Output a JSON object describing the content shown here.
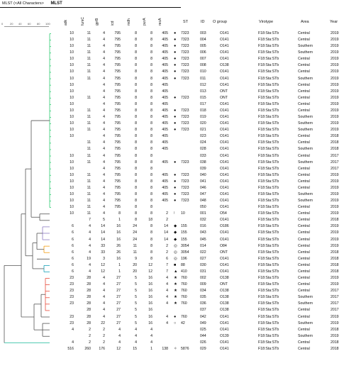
{
  "app": {
    "title_prefix": "MLST (<All Characters>",
    "tab_label": "MLST",
    "scale_labels": [
      "0",
      "20",
      "40",
      "60",
      "80",
      "100"
    ]
  },
  "columns": {
    "alleles": [
      "adk",
      "fumC",
      "gyrB",
      "icd",
      "mdh",
      "purA",
      "recA"
    ],
    "st": "ST",
    "id": "ID",
    "ogroup": "O group",
    "virotype": "Virotype",
    "area": "Area",
    "year": "Year"
  },
  "markers": {
    "dot": "●",
    "diamond": "◆",
    "circled": "◎",
    "square": "■",
    "triangle": "▲",
    "star": "★",
    "ring": "○",
    "small": "ʲ",
    "dotstar": "✧"
  },
  "rows": [
    {
      "a": [
        "10",
        "11",
        "4",
        "795",
        "8",
        "8",
        "405"
      ],
      "st": "7323",
      "mk": "dot",
      "id": "003",
      "og": "O141",
      "vt": "F18:Sta:STb",
      "area": "Central",
      "year": "2019"
    },
    {
      "a": [
        "10",
        "11",
        "4",
        "795",
        "8",
        "8",
        "405"
      ],
      "st": "7323",
      "mk": "dot",
      "id": "004",
      "og": "O141",
      "vt": "F18:Sta:STb",
      "area": "Central",
      "year": "2019"
    },
    {
      "a": [
        "10",
        "11",
        "4",
        "795",
        "8",
        "8",
        "405"
      ],
      "st": "7323",
      "mk": "dot",
      "id": "005",
      "og": "O141",
      "vt": "F18:Sta:STb",
      "area": "Southern",
      "year": "2019"
    },
    {
      "a": [
        "10",
        "11",
        "4",
        "795",
        "8",
        "8",
        "405"
      ],
      "st": "7323",
      "mk": "dot",
      "id": "006",
      "og": "O141",
      "vt": "F18:Sta:STb",
      "area": "Southern",
      "year": "2019"
    },
    {
      "a": [
        "10",
        "11",
        "4",
        "795",
        "8",
        "8",
        "405"
      ],
      "st": "7323",
      "mk": "dot",
      "id": "007",
      "og": "O141",
      "vt": "F18:Sta:STb",
      "area": "Central",
      "year": "2019"
    },
    {
      "a": [
        "10",
        "11",
        "4",
        "795",
        "8",
        "8",
        "405"
      ],
      "st": "7323",
      "mk": "dot",
      "id": "008",
      "og": "O138",
      "vt": "F18:Sta:STb",
      "area": "Central",
      "year": "2019"
    },
    {
      "a": [
        "10",
        "11",
        "4",
        "795",
        "8",
        "8",
        "405"
      ],
      "st": "7323",
      "mk": "dot",
      "id": "010",
      "og": "O141",
      "vt": "F18:Sta:STb",
      "area": "Central",
      "year": "2019"
    },
    {
      "a": [
        "10",
        "11",
        "4",
        "795",
        "8",
        "8",
        "405"
      ],
      "st": "7323",
      "mk": "dot",
      "id": "011",
      "og": "O141",
      "vt": "F18:Sta:STb",
      "area": "Southern",
      "year": "2019"
    },
    {
      "a": [
        "10",
        "",
        "4",
        "795",
        "8",
        "8",
        "405"
      ],
      "st": "",
      "mk": "",
      "id": "012",
      "og": "O141",
      "vt": "F18:Sta:STb",
      "area": "Central",
      "year": "2019"
    },
    {
      "a": [
        "10",
        "",
        "4",
        "795",
        "8",
        "8",
        "405"
      ],
      "st": "",
      "mk": "",
      "id": "013",
      "og": "ONT",
      "vt": "F18:Sta:STb",
      "area": "Central",
      "year": "2019"
    },
    {
      "a": [
        "10",
        "11",
        "4",
        "795",
        "8",
        "8",
        "405"
      ],
      "st": "7323",
      "mk": "dot",
      "id": "015",
      "og": "ONT",
      "vt": "F18:Sta:STb",
      "area": "Central",
      "year": "2019"
    },
    {
      "a": [
        "10",
        "",
        "4",
        "795",
        "8",
        "8",
        "405"
      ],
      "st": "",
      "mk": "",
      "id": "017",
      "og": "O141",
      "vt": "F18:Sta:STb",
      "area": "Central",
      "year": "2019"
    },
    {
      "a": [
        "10",
        "11",
        "4",
        "795",
        "8",
        "8",
        "405"
      ],
      "st": "7323",
      "mk": "dot",
      "id": "018",
      "og": "O141",
      "vt": "F18:Sta:STb",
      "area": "Central",
      "year": "2019"
    },
    {
      "a": [
        "10",
        "11",
        "4",
        "795",
        "8",
        "8",
        "405"
      ],
      "st": "7323",
      "mk": "dot",
      "id": "019",
      "og": "O141",
      "vt": "F18:Sta:STb",
      "area": "Southern",
      "year": "2019"
    },
    {
      "a": [
        "10",
        "11",
        "4",
        "795",
        "8",
        "8",
        "405"
      ],
      "st": "7323",
      "mk": "dot",
      "id": "020",
      "og": "O141",
      "vt": "F18:Sta:STb",
      "area": "Southern",
      "year": "2019"
    },
    {
      "a": [
        "10",
        "11",
        "4",
        "795",
        "8",
        "8",
        "405"
      ],
      "st": "7323",
      "mk": "dot",
      "id": "021",
      "og": "O141",
      "vt": "F18:Sta:STb",
      "area": "Southern",
      "year": "2019"
    },
    {
      "a": [
        "10",
        "",
        "4",
        "795",
        "8",
        "8",
        "405"
      ],
      "st": "",
      "mk": "",
      "id": "023",
      "og": "O141",
      "vt": "F18:Sta:STb",
      "area": "Central",
      "year": "2018"
    },
    {
      "a": [
        "",
        "11",
        "4",
        "795",
        "8",
        "8",
        "405"
      ],
      "st": "",
      "mk": "",
      "id": "024",
      "og": "O141",
      "vt": "F18:Sta:STb",
      "area": "Central",
      "year": "2018"
    },
    {
      "a": [
        "",
        "11",
        "4",
        "795",
        "8",
        "8",
        "405"
      ],
      "st": "",
      "mk": "",
      "id": "028",
      "og": "O141",
      "vt": "F18:Sta:STb",
      "area": "Southern",
      "year": "2018"
    },
    {
      "a": [
        "10",
        "11",
        "4",
        "795",
        "8",
        "8",
        ""
      ],
      "st": "",
      "mk": "",
      "id": "033",
      "og": "O141",
      "vt": "F18:Sta:STb",
      "area": "Central",
      "year": "2017"
    },
    {
      "a": [
        "10",
        "11",
        "4",
        "795",
        "8",
        "8",
        "405"
      ],
      "st": "7323",
      "mk": "dot",
      "id": "038",
      "og": "O141",
      "vt": "F18:Sta:STb",
      "area": "Southern",
      "year": "2017"
    },
    {
      "a": [
        "10",
        "",
        "4",
        "795",
        "8",
        "8",
        ""
      ],
      "st": "",
      "mk": "",
      "id": "039",
      "og": "O141",
      "vt": "F18:Sta:STb",
      "area": "Central",
      "year": "2017"
    },
    {
      "a": [
        "10",
        "11",
        "4",
        "795",
        "8",
        "8",
        "405"
      ],
      "st": "7323",
      "mk": "dot",
      "id": "040",
      "og": "O141",
      "vt": "F18:Sta:STb",
      "area": "Central",
      "year": "2019"
    },
    {
      "a": [
        "10",
        "11",
        "4",
        "795",
        "8",
        "8",
        "405"
      ],
      "st": "7323",
      "mk": "dot",
      "id": "041",
      "og": "O141",
      "vt": "F18:Sta:STb",
      "area": "Central",
      "year": "2019"
    },
    {
      "a": [
        "10",
        "11",
        "4",
        "795",
        "8",
        "8",
        "405"
      ],
      "st": "7323",
      "mk": "dot",
      "id": "046",
      "og": "O141",
      "vt": "F18:Sta:STb",
      "area": "Central",
      "year": "2019"
    },
    {
      "a": [
        "10",
        "11",
        "4",
        "795",
        "8",
        "8",
        "405"
      ],
      "st": "7323",
      "mk": "dot",
      "id": "047",
      "og": "O141",
      "vt": "F18:Sta:STb",
      "area": "Southern",
      "year": "2019"
    },
    {
      "a": [
        "10",
        "11",
        "4",
        "795",
        "8",
        "8",
        "405"
      ],
      "st": "7323",
      "mk": "dot",
      "id": "048",
      "og": "O141",
      "vt": "F18:Sta:STb",
      "area": "Southern",
      "year": "2019"
    },
    {
      "a": [
        "10",
        "11",
        "4",
        "795",
        "8",
        "8",
        ""
      ],
      "st": "",
      "mk": "",
      "id": "050",
      "og": "O141",
      "vt": "F18:Sta:STb",
      "area": "Central",
      "year": "2019"
    },
    {
      "a": [
        "10",
        "11",
        "4",
        "8",
        "8",
        "8",
        "2"
      ],
      "st": "10",
      "mk": "small",
      "id": "001",
      "og": "O54",
      "vt": "F18:Sta:STb",
      "area": "Central",
      "year": "2019"
    },
    {
      "a": [
        "",
        "7",
        "5",
        "1",
        "8",
        "18",
        "2"
      ],
      "st": "",
      "mk": "",
      "id": "032",
      "og": "O141",
      "vt": "F18:Sta:STb",
      "area": "Central",
      "year": "2018"
    },
    {
      "a": [
        "6",
        "4",
        "14",
        "16",
        "24",
        "8",
        "14"
      ],
      "st": "155",
      "mk": "diamond",
      "id": "016",
      "og": "O186",
      "vt": "F18:Sta:STb",
      "area": "Central",
      "year": "2019"
    },
    {
      "a": [
        "6",
        "4",
        "14",
        "16",
        "24",
        "8",
        "14"
      ],
      "st": "155",
      "mk": "diamond",
      "id": "043",
      "og": "O141",
      "vt": "F18:Sta:STb",
      "area": "Central",
      "year": "2019"
    },
    {
      "a": [
        "6",
        "4",
        "14",
        "16",
        "24",
        "8",
        "14"
      ],
      "st": "155",
      "mk": "diamond",
      "id": "045",
      "og": "O141",
      "vt": "F18:Sta:STb",
      "area": "Central",
      "year": "2019"
    },
    {
      "a": [
        "6",
        "4",
        "33",
        "26",
        "11",
        "8",
        "2"
      ],
      "st": "3054",
      "mk": "circled",
      "id": "014",
      "og": "O84",
      "vt": "F18:Sta:STb",
      "area": "Central",
      "year": "2019"
    },
    {
      "a": [
        "6",
        "4",
        "33",
        "26",
        "11",
        "8",
        "2"
      ],
      "st": "3054",
      "mk": "circled",
      "id": "022",
      "og": "ONT",
      "vt": "F18:Sta:STb",
      "area": "Central",
      "year": "2018"
    },
    {
      "a": [
        "6",
        "19",
        "3",
        "16",
        "9",
        "8",
        "6"
      ],
      "st": "196",
      "mk": "circled",
      "id": "027",
      "og": "O141",
      "vt": "F18:Sta:STb",
      "area": "Central",
      "year": "2018"
    },
    {
      "a": [
        "6",
        "4",
        "12",
        "1",
        "20",
        "12",
        "7"
      ],
      "st": "88",
      "mk": "square",
      "id": "030",
      "og": "O141",
      "vt": "F18:Sta:STb",
      "area": "Central",
      "year": "2018"
    },
    {
      "a": [
        "6",
        "4",
        "12",
        "1",
        "20",
        "12",
        "7"
      ],
      "st": "410",
      "mk": "triangle",
      "id": "031",
      "og": "O141",
      "vt": "F18:Sta:STb",
      "area": "Central",
      "year": "2018"
    },
    {
      "a": [
        "23",
        "28",
        "4",
        "27",
        "5",
        "16",
        "4"
      ],
      "st": "760",
      "mk": "star",
      "id": "002",
      "og": "O138",
      "vt": "F18:Sta:STb",
      "area": "Central",
      "year": "2019"
    },
    {
      "a": [
        "23",
        "28",
        "4",
        "27",
        "5",
        "16",
        "4"
      ],
      "st": "760",
      "mk": "star",
      "id": "009",
      "og": "ONT",
      "vt": "F18:Sta:STb",
      "area": "Central",
      "year": "2019"
    },
    {
      "a": [
        "23",
        "28",
        "4",
        "27",
        "5",
        "16",
        "4"
      ],
      "st": "760",
      "mk": "star",
      "id": "034",
      "og": "O138",
      "vt": "F18:Sta:STb",
      "area": "Central",
      "year": "2017"
    },
    {
      "a": [
        "23",
        "28",
        "4",
        "27",
        "5",
        "16",
        "4"
      ],
      "st": "760",
      "mk": "star",
      "id": "035",
      "og": "O138",
      "vt": "F18:Sta:STb",
      "area": "Southern",
      "year": "2017"
    },
    {
      "a": [
        "23",
        "28",
        "4",
        "27",
        "5",
        "16",
        "4"
      ],
      "st": "760",
      "mk": "star",
      "id": "036",
      "og": "O138",
      "vt": "F18:Sta:STb",
      "area": "Southern",
      "year": "2017"
    },
    {
      "a": [
        "",
        "28",
        "4",
        "27",
        "5",
        "16",
        ""
      ],
      "st": "",
      "mk": "",
      "id": "037",
      "og": "O138",
      "vt": "F18:Sta:STb",
      "area": "Central",
      "year": "2017"
    },
    {
      "a": [
        "23",
        "28",
        "4",
        "27",
        "5",
        "16",
        "4"
      ],
      "st": "760",
      "mk": "dot",
      "id": "042",
      "og": "O141",
      "vt": "F18:Sta:STb",
      "area": "Central",
      "year": "2019"
    },
    {
      "a": [
        "23",
        "28",
        "22",
        "27",
        "5",
        "16",
        "4"
      ],
      "st": "42",
      "mk": "ring",
      "id": "049",
      "og": "O141",
      "vt": "F18:Sta:STb",
      "area": "Southern",
      "year": "2019"
    },
    {
      "a": [
        "4",
        "2",
        "2",
        "4",
        "4",
        "4",
        ""
      ],
      "st": "",
      "mk": "",
      "id": "025",
      "og": "O141",
      "vt": "F18:Sta:STb",
      "area": "Central",
      "year": "2018"
    },
    {
      "a": [
        "",
        "2",
        "2",
        "4",
        "4",
        "4",
        ""
      ],
      "st": "",
      "mk": "",
      "id": "044",
      "og": "O139",
      "vt": "F18:Sta:STb",
      "area": "Southern",
      "year": "2019"
    },
    {
      "a": [
        "4",
        "2",
        "2",
        "4",
        "4",
        "4",
        ""
      ],
      "st": "",
      "mk": "",
      "id": "026",
      "og": "O141",
      "vt": "F18:Sta:STb",
      "area": "Central",
      "year": "2018"
    },
    {
      "a": [
        "516",
        "260",
        "176",
        "12",
        "15",
        "1",
        "138"
      ],
      "st": "5876",
      "mk": "dotstar",
      "id": "029",
      "og": "O141",
      "vt": "F18:Sta:STb",
      "area": "Central",
      "year": "2018"
    }
  ]
}
